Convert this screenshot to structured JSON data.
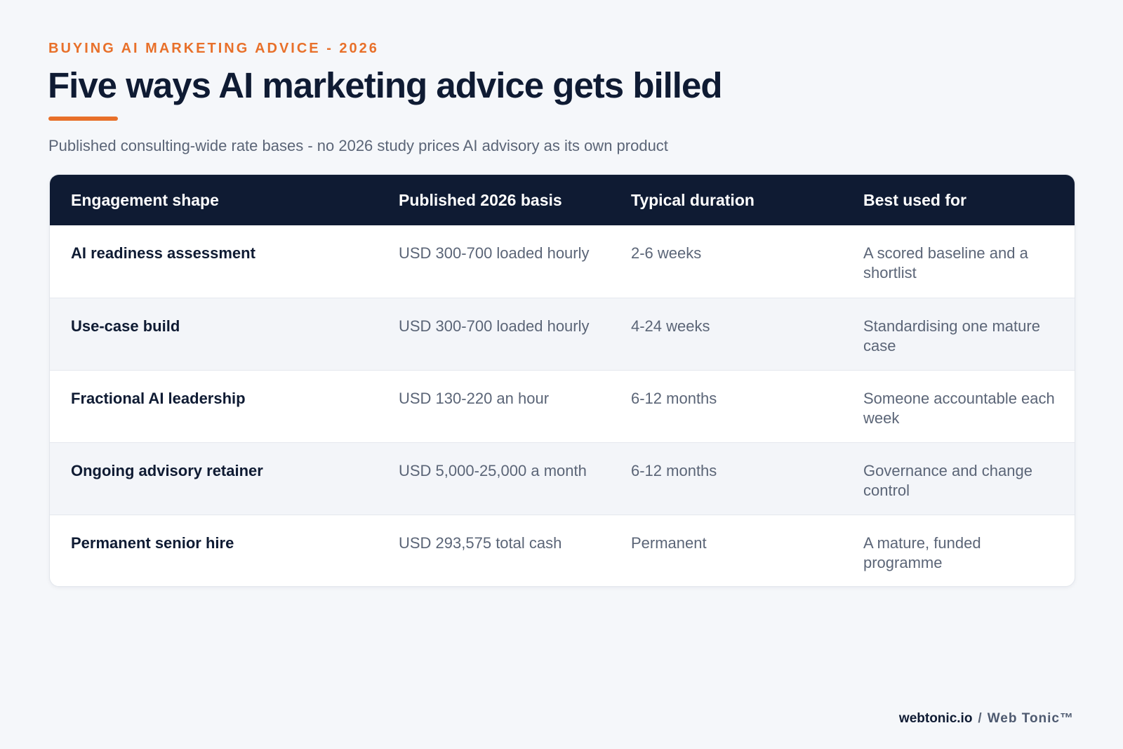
{
  "header": {
    "eyebrow": "BUYING AI MARKETING ADVICE - 2026",
    "title": "Five ways AI marketing advice gets billed",
    "subtitle": "Published consulting-wide rate bases - no 2026 study prices AI advisory as its own product"
  },
  "table": {
    "columns": [
      "Engagement shape",
      "Published 2026 basis",
      "Typical duration",
      "Best used for"
    ],
    "rows": [
      {
        "shape": "AI readiness assessment",
        "basis": "USD 300-700 loaded hourly",
        "duration": "2-6 weeks",
        "best_for": "A scored baseline and a shortlist"
      },
      {
        "shape": "Use-case build",
        "basis": "USD 300-700 loaded hourly",
        "duration": "4-24 weeks",
        "best_for": "Standardising one mature case"
      },
      {
        "shape": "Fractional AI leadership",
        "basis": "USD 130-220 an hour",
        "duration": "6-12 months",
        "best_for": "Someone accountable each week"
      },
      {
        "shape": "Ongoing advisory retainer",
        "basis": "USD 5,000-25,000 a month",
        "duration": "6-12 months",
        "best_for": "Governance and change control"
      },
      {
        "shape": "Permanent senior hire",
        "basis": "USD 293,575 total cash",
        "duration": "Permanent",
        "best_for": "A mature, funded programme"
      }
    ]
  },
  "footer": {
    "site": "webtonic.io",
    "separator": "/",
    "brand": "Web Tonic™"
  },
  "colors": {
    "accent": "#e8702a",
    "navy": "#0f1b33",
    "muted_text": "#5b6577",
    "background": "#f5f7fa"
  }
}
